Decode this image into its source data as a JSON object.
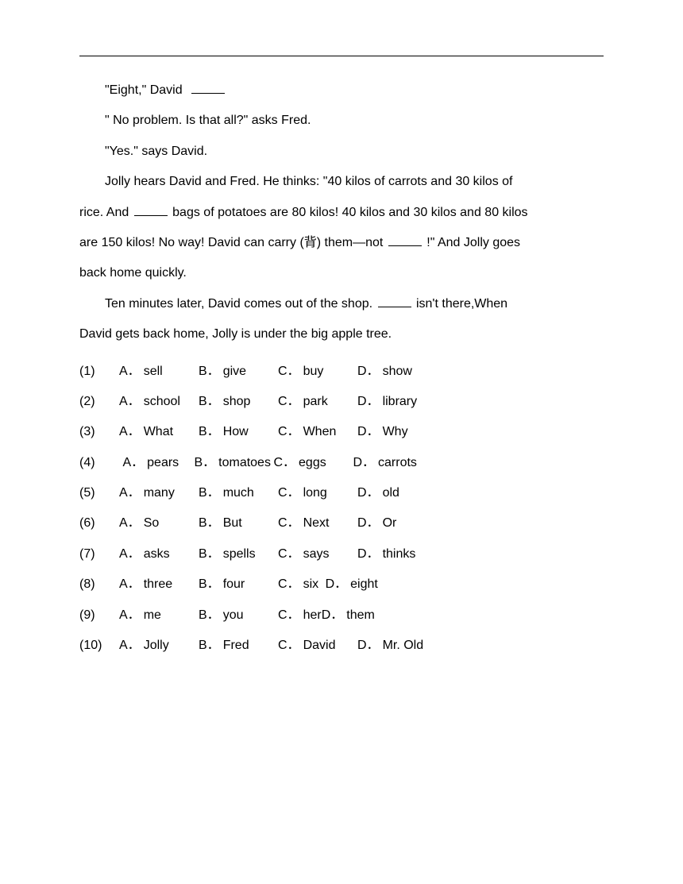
{
  "passage": {
    "p1": "\"Eight,\" David",
    "p2": "\" No problem. Is that all?\" asks Fred.",
    "p3": "\"Yes.\" says David.",
    "p4a": "Jolly hears David and Fred. He thinks: \"40 kilos of carrots and 30 kilos of",
    "p4b": "rice. And ",
    "p4c": " bags of potatoes are 80 kilos! 40 kilos and 30 kilos and 80 kilos",
    "p4d": "are 150 kilos! No way! David can carry (背) them—not ",
    "p4e": "!\" And Jolly goes",
    "p4f": "back home quickly.",
    "p5a": "Ten minutes later, David comes out of the shop. ",
    "p5b": " isn't there,When",
    "p5c": "David gets back home, Jolly is under the big apple tree."
  },
  "questions": [
    {
      "n": "(1)",
      "opts": [
        [
          "A．",
          "sell"
        ],
        [
          "B．",
          "give"
        ],
        [
          "C．",
          "buy"
        ],
        [
          "D．",
          "show"
        ]
      ],
      "layout": "std"
    },
    {
      "n": "(2)",
      "opts": [
        [
          "A．",
          "school"
        ],
        [
          "B．",
          "shop"
        ],
        [
          "C．",
          "park"
        ],
        [
          "D．",
          "library"
        ]
      ],
      "layout": "std"
    },
    {
      "n": "(3)",
      "opts": [
        [
          "A．",
          "What"
        ],
        [
          "B．",
          "How"
        ],
        [
          "C．",
          "When"
        ],
        [
          "D．",
          "Why"
        ]
      ],
      "layout": "std"
    },
    {
      "n": "(4)",
      "opts": [
        [
          "A．",
          "pears"
        ],
        [
          "B．",
          "tomatoes"
        ],
        [
          "C．",
          "eggs"
        ],
        [
          "D．",
          "carrots"
        ]
      ],
      "layout": "std4"
    },
    {
      "n": "(5)",
      "opts": [
        [
          "A．",
          "many"
        ],
        [
          "B．",
          "much"
        ],
        [
          "C．",
          "long"
        ],
        [
          "D．",
          "old"
        ]
      ],
      "layout": "std"
    },
    {
      "n": "(6)",
      "opts": [
        [
          "A．",
          "So"
        ],
        [
          "B．",
          "But"
        ],
        [
          "C．",
          "Next"
        ],
        [
          "D．",
          "Or"
        ]
      ],
      "layout": "std"
    },
    {
      "n": "(7)",
      "opts": [
        [
          "A．",
          "asks"
        ],
        [
          "B．",
          "spells"
        ],
        [
          "C．",
          "says"
        ],
        [
          "D．",
          "thinks"
        ]
      ],
      "layout": "std"
    },
    {
      "n": "(8)",
      "opts": [
        [
          "A．",
          "three"
        ],
        [
          "B．",
          "four"
        ],
        [
          "C．",
          "six"
        ],
        [
          "D．",
          "eight"
        ]
      ],
      "layout": "compact8"
    },
    {
      "n": "(9)",
      "opts": [
        [
          "A．",
          "me"
        ],
        [
          "B．",
          "you"
        ],
        [
          "C．",
          "her"
        ],
        [
          "D．",
          "them"
        ]
      ],
      "layout": "compact9"
    },
    {
      "n": "(10)",
      "opts": [
        [
          "A．",
          "Jolly"
        ],
        [
          "B．",
          "Fred"
        ],
        [
          "C．",
          "David"
        ],
        [
          "D．",
          "Mr. Old"
        ]
      ],
      "layout": "std"
    }
  ]
}
